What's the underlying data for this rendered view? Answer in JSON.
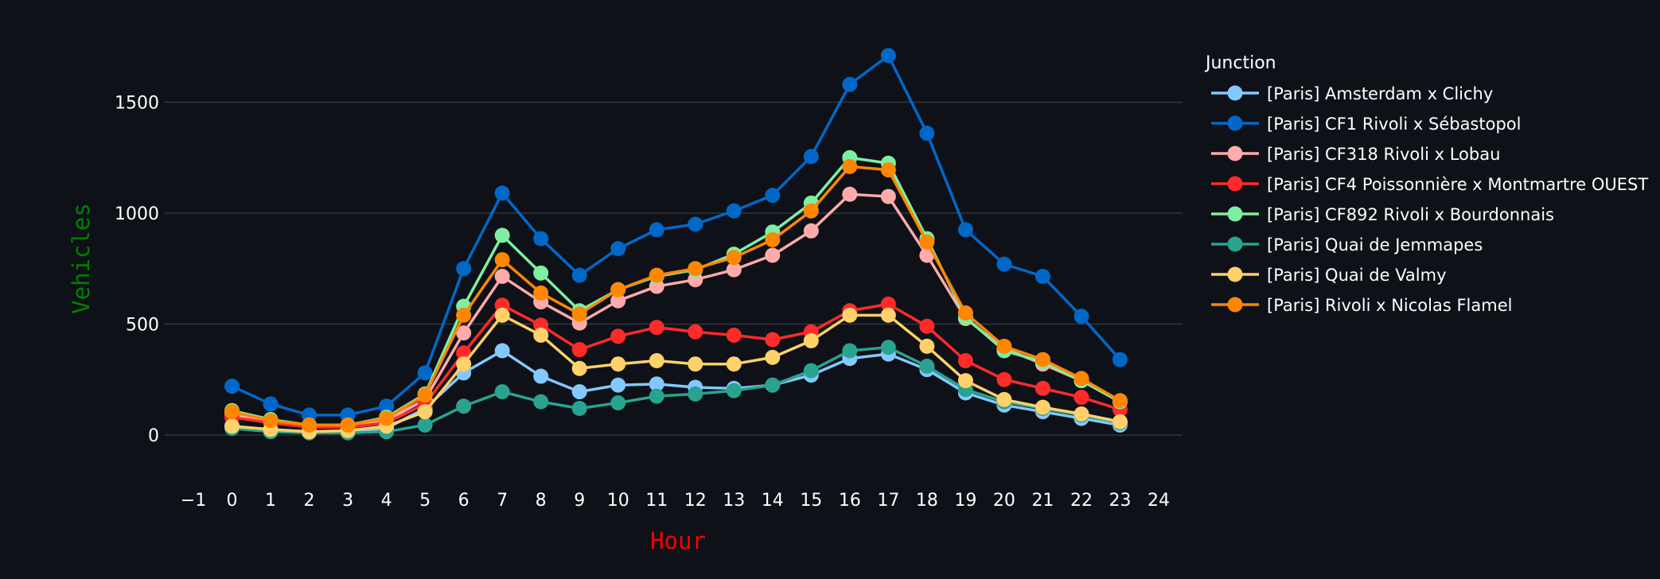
{
  "chart_data": {
    "type": "line",
    "xlabel": "Hour",
    "ylabel": "Vehicles",
    "xlim": [
      -1,
      24
    ],
    "ylim": [
      -190,
      1810
    ],
    "x_ticks": [
      -1,
      0,
      1,
      2,
      3,
      4,
      5,
      6,
      7,
      8,
      9,
      10,
      11,
      12,
      13,
      14,
      15,
      16,
      17,
      18,
      19,
      20,
      21,
      22,
      23,
      24
    ],
    "x_tick_labels": [
      "−1",
      "0",
      "1",
      "2",
      "3",
      "4",
      "5",
      "6",
      "7",
      "8",
      "9",
      "10",
      "11",
      "12",
      "13",
      "14",
      "15",
      "16",
      "17",
      "18",
      "19",
      "20",
      "21",
      "22",
      "23",
      "24"
    ],
    "y_ticks": [
      0,
      500,
      1000,
      1500
    ],
    "y_tick_labels": [
      "0",
      "500",
      "1000",
      "1500"
    ],
    "grid": "horizontal",
    "legend_title": "Junction",
    "legend_position": "right",
    "x": [
      0,
      1,
      2,
      3,
      4,
      5,
      6,
      7,
      8,
      9,
      10,
      11,
      12,
      13,
      14,
      15,
      16,
      17,
      18,
      19,
      20,
      21,
      22,
      23
    ],
    "series": [
      {
        "name": "[Paris] Amsterdam x Clichy",
        "color": "#83c9ff",
        "values": [
          40,
          25,
          15,
          15,
          30,
          120,
          280,
          380,
          265,
          195,
          225,
          230,
          215,
          210,
          225,
          270,
          345,
          365,
          295,
          190,
          135,
          105,
          75,
          45
        ]
      },
      {
        "name": "[Paris] CF1 Rivoli x Sébastopol",
        "color": "#0068c9",
        "values": [
          220,
          140,
          90,
          90,
          130,
          280,
          750,
          1090,
          885,
          720,
          840,
          925,
          950,
          1010,
          1080,
          1255,
          1580,
          1710,
          1360,
          925,
          770,
          715,
          535,
          340
        ]
      },
      {
        "name": "[Paris] CF318 Rivoli x Lobau",
        "color": "#ffabab",
        "values": [
          90,
          60,
          40,
          40,
          65,
          160,
          460,
          715,
          600,
          505,
          605,
          670,
          700,
          745,
          810,
          920,
          1085,
          1075,
          810,
          525,
          390,
          320,
          245,
          150
        ]
      },
      {
        "name": "[Paris] CF4 Poissonnière x Montmartre OUEST",
        "color": "#ff2b2b",
        "values": [
          80,
          55,
          35,
          35,
          55,
          140,
          370,
          585,
          495,
          385,
          445,
          485,
          465,
          450,
          430,
          465,
          560,
          590,
          490,
          335,
          250,
          210,
          170,
          115
        ]
      },
      {
        "name": "[Paris] CF892 Rivoli x Bourdonnais",
        "color": "#7defa1",
        "values": [
          110,
          70,
          45,
          45,
          80,
          185,
          580,
          900,
          730,
          560,
          655,
          715,
          745,
          815,
          915,
          1045,
          1250,
          1225,
          885,
          530,
          380,
          330,
          245,
          150
        ]
      },
      {
        "name": "[Paris] Quai de Jemmapes",
        "color": "#29a38f",
        "values": [
          30,
          15,
          10,
          10,
          15,
          45,
          130,
          195,
          150,
          120,
          145,
          175,
          185,
          200,
          225,
          290,
          380,
          395,
          310,
          205,
          150,
          120,
          90,
          55
        ]
      },
      {
        "name": "[Paris] Quai de Valmy",
        "color": "#ffd16a",
        "values": [
          40,
          25,
          15,
          20,
          40,
          105,
          320,
          540,
          450,
          300,
          320,
          335,
          320,
          320,
          350,
          425,
          540,
          540,
          400,
          245,
          160,
          125,
          95,
          60
        ]
      },
      {
        "name": "[Paris] Rivoli x Nicolas Flamel",
        "color": "#ff8700",
        "values": [
          105,
          65,
          45,
          45,
          75,
          180,
          540,
          790,
          640,
          545,
          655,
          720,
          750,
          800,
          880,
          1010,
          1210,
          1195,
          870,
          550,
          400,
          340,
          255,
          155
        ]
      }
    ]
  },
  "colors": {
    "background": "#0e1117",
    "xlabel_color": "#ff0000",
    "ylabel_color": "#008000"
  }
}
